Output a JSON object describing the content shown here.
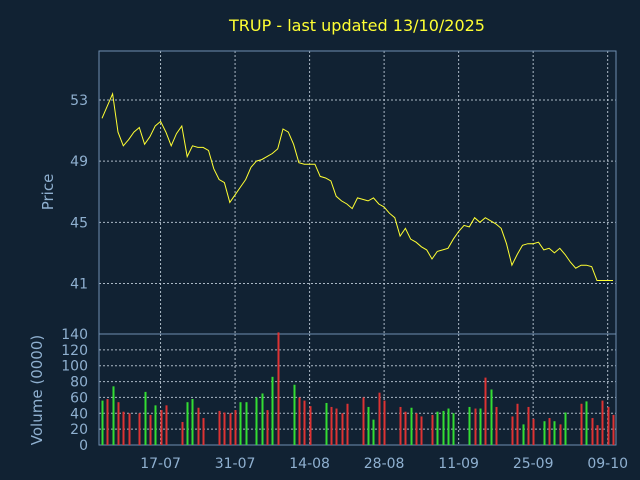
{
  "chart_data": {
    "type": "line",
    "title": "TRUP - last updated 13/10/2025",
    "price_panel": {
      "ylabel": "Price",
      "ylim": [
        37.7,
        56.2
      ],
      "yticks": [
        41,
        45,
        49,
        53
      ],
      "color": "#ffff33",
      "values": [
        51.8,
        52.6,
        53.4,
        50.9,
        50.0,
        50.4,
        50.9,
        51.2,
        50.1,
        50.6,
        51.3,
        51.6,
        50.9,
        50.0,
        50.8,
        51.3,
        49.3,
        50.0,
        49.9,
        49.9,
        49.7,
        48.5,
        47.8,
        47.6,
        46.3,
        46.8,
        47.3,
        47.8,
        48.6,
        49.0,
        49.1,
        49.3,
        49.5,
        49.8,
        51.1,
        50.9,
        50.1,
        48.9,
        48.8,
        48.8,
        48.8,
        48.0,
        47.9,
        47.7,
        46.7,
        46.4,
        46.2,
        45.9,
        46.6,
        46.5,
        46.4,
        46.6,
        46.2,
        46.0,
        45.6,
        45.3,
        44.1,
        44.6,
        43.9,
        43.7,
        43.4,
        43.2,
        42.6,
        43.1,
        43.2,
        43.3,
        43.9,
        44.4,
        44.8,
        44.7,
        45.3,
        45.0,
        45.3,
        45.1,
        44.9,
        44.6,
        43.6,
        42.2,
        42.9,
        43.5,
        43.6,
        43.6,
        43.7,
        43.2,
        43.3,
        43.0,
        43.3,
        42.9,
        42.4,
        42.0,
        42.2,
        42.2,
        42.1,
        41.2,
        41.2,
        41.2,
        41.2
      ]
    },
    "volume_panel": {
      "ylabel": "Volume (0000)",
      "ylim": [
        0,
        140
      ],
      "yticks": [
        0,
        20,
        40,
        60,
        80,
        100,
        120,
        140
      ],
      "up_color": "#33dd33",
      "down_color": "#dd3333",
      "values": [
        56,
        58,
        74,
        54,
        42,
        40,
        0,
        40,
        67,
        38,
        50,
        44,
        50,
        0,
        0,
        29,
        54,
        58,
        47,
        34,
        0,
        0,
        43,
        41,
        40,
        44,
        54,
        54,
        0,
        60,
        65,
        44,
        86,
        142,
        0,
        0,
        76,
        60,
        56,
        49,
        0,
        0,
        53,
        48,
        46,
        40,
        52,
        0,
        0,
        60,
        48,
        32,
        66,
        56,
        0,
        0,
        48,
        42,
        47,
        40,
        36,
        0,
        38,
        42,
        43,
        46,
        40,
        0,
        0,
        48,
        46,
        46,
        85,
        70,
        48,
        0,
        0,
        36,
        52,
        26,
        48,
        33,
        0,
        30,
        34,
        30,
        26,
        41,
        0,
        0,
        52,
        55,
        34,
        25,
        56,
        48,
        38
      ],
      "up": [
        1,
        0,
        1,
        0,
        0,
        0,
        0,
        0,
        1,
        0,
        1,
        0,
        0,
        0,
        0,
        0,
        1,
        1,
        0,
        0,
        0,
        0,
        0,
        0,
        0,
        0,
        1,
        1,
        0,
        1,
        1,
        0,
        1,
        0,
        0,
        0,
        1,
        0,
        0,
        0,
        0,
        0,
        1,
        0,
        0,
        0,
        0,
        0,
        0,
        0,
        1,
        1,
        0,
        0,
        0,
        0,
        0,
        0,
        1,
        0,
        0,
        0,
        0,
        1,
        1,
        1,
        1,
        0,
        0,
        1,
        0,
        1,
        0,
        1,
        0,
        0,
        0,
        0,
        0,
        1,
        0,
        0,
        0,
        1,
        0,
        1,
        0,
        1,
        0,
        0,
        0,
        1,
        0,
        0,
        0,
        0,
        0
      ]
    },
    "x_ticks": [
      {
        "label": "17-07",
        "index": 11
      },
      {
        "label": "31-07",
        "index": 25
      },
      {
        "label": "14-08",
        "index": 39
      },
      {
        "label": "28-08",
        "index": 53
      },
      {
        "label": "11-09",
        "index": 67
      },
      {
        "label": "25-09",
        "index": 81
      },
      {
        "label": "09-10",
        "index": 95
      }
    ]
  }
}
